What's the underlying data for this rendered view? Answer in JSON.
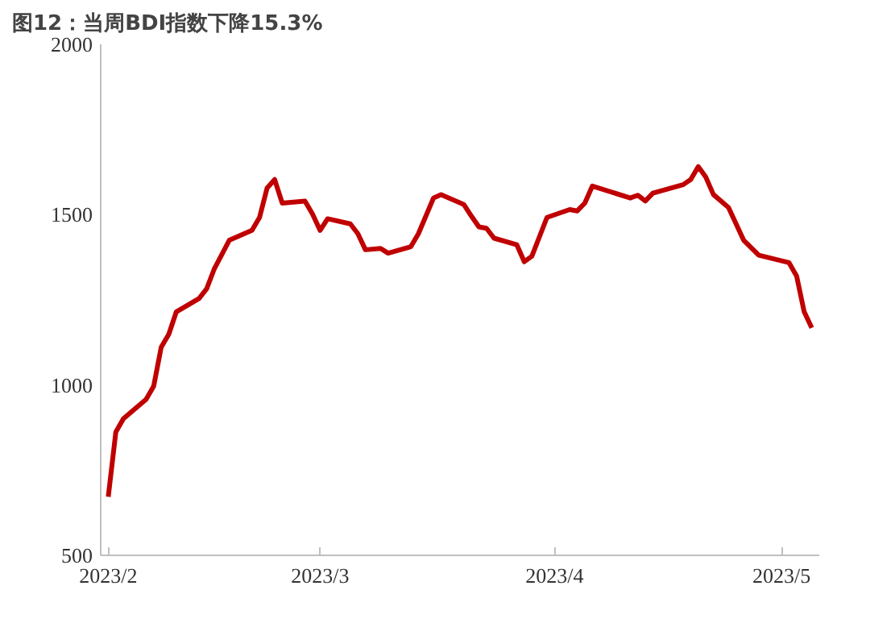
{
  "chart_data": {
    "type": "line",
    "title": "图12：当周BDI指数下降15.3%",
    "x": [
      "2023-02-01",
      "2023-02-02",
      "2023-02-03",
      "2023-02-06",
      "2023-02-07",
      "2023-02-08",
      "2023-02-09",
      "2023-02-10",
      "2023-02-13",
      "2023-02-14",
      "2023-02-15",
      "2023-02-17",
      "2023-02-20",
      "2023-02-21",
      "2023-02-22",
      "2023-02-23",
      "2023-02-24",
      "2023-02-27",
      "2023-02-28",
      "2023-03-01",
      "2023-03-02",
      "2023-03-05",
      "2023-03-06",
      "2023-03-07",
      "2023-03-09",
      "2023-03-10",
      "2023-03-13",
      "2023-03-14",
      "2023-03-16",
      "2023-03-17",
      "2023-03-20",
      "2023-03-21",
      "2023-03-22",
      "2023-03-23",
      "2023-03-24",
      "2023-03-27",
      "2023-03-28",
      "2023-03-29",
      "2023-03-31",
      "2023-04-03",
      "2023-04-04",
      "2023-04-05",
      "2023-04-06",
      "2023-04-11",
      "2023-04-12",
      "2023-04-13",
      "2023-04-14",
      "2023-04-18",
      "2023-04-19",
      "2023-04-20",
      "2023-04-21",
      "2023-04-22",
      "2023-04-24",
      "2023-04-26",
      "2023-04-28",
      "2023-05-02",
      "2023-05-03",
      "2023-05-04",
      "2023-05-05"
    ],
    "series": [
      {
        "color": "#c00000",
        "values": [
          672,
          862,
          901,
          958,
          996,
          1111,
          1149,
          1215,
          1254,
          1282,
          1340,
          1425,
          1454,
          1492,
          1578,
          1603,
          1534,
          1540,
          1502,
          1454,
          1488,
          1473,
          1444,
          1397,
          1401,
          1387,
          1406,
          1444,
          1549,
          1559,
          1530,
          1496,
          1464,
          1460,
          1431,
          1412,
          1362,
          1378,
          1492,
          1515,
          1511,
          1534,
          1584,
          1549,
          1557,
          1540,
          1563,
          1588,
          1603,
          1641,
          1610,
          1559,
          1521,
          1425,
          1381,
          1359,
          1320,
          1215,
          1168
        ]
      }
    ],
    "xlim": [
      "2023-01-31",
      "2023-05-06"
    ],
    "xticks": [
      {
        "value": "2023-02-01",
        "label": "2023/2"
      },
      {
        "value": "2023-03-01",
        "label": "2023/3"
      },
      {
        "value": "2023-04-01",
        "label": "2023/4"
      },
      {
        "value": "2023-05-01",
        "label": "2023/5"
      }
    ],
    "ylim": [
      500,
      2000
    ],
    "yticks": [
      500,
      1000,
      1500,
      2000
    ],
    "grid": false,
    "marker": "none",
    "line_style": "solid"
  }
}
